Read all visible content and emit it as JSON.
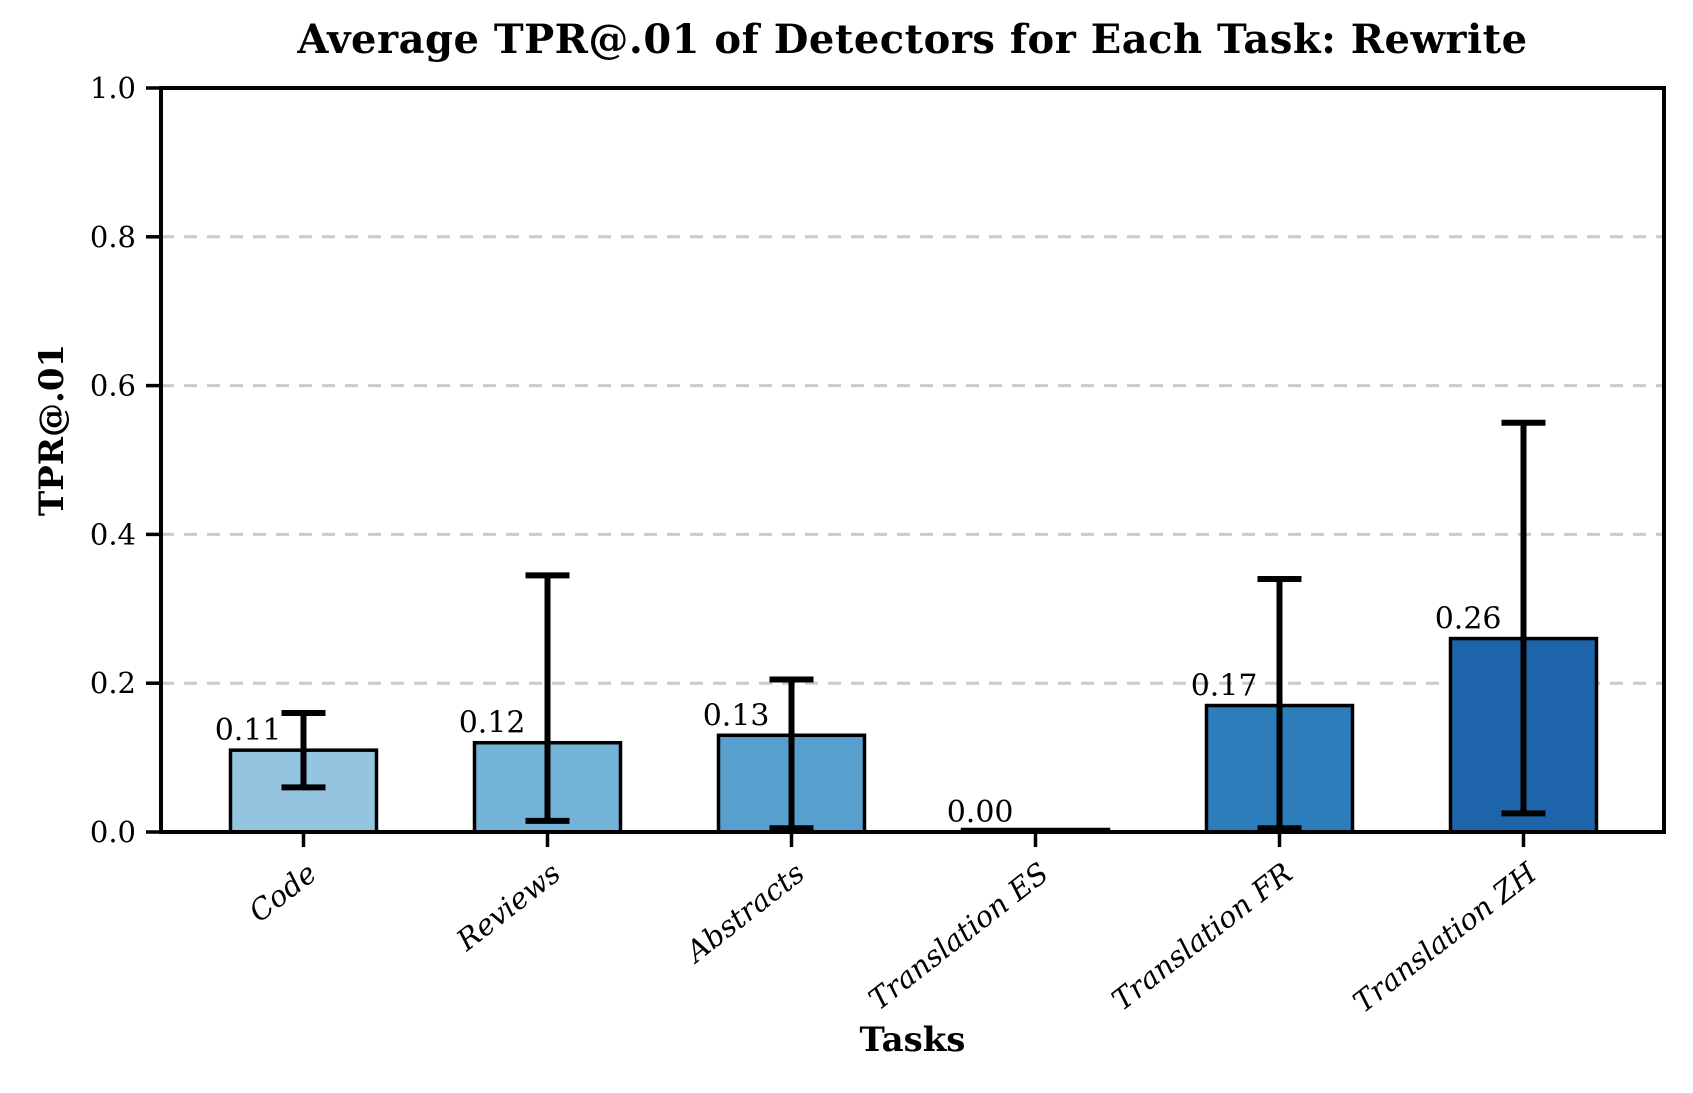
{
  "figure": {
    "background": "#ffffff"
  },
  "chart_data": {
    "type": "bar",
    "title": "Average TPR@.01 of Detectors for Each Task: Rewrite",
    "xlabel": "Tasks",
    "ylabel": "TPR@.01",
    "ylim": [
      0.0,
      1.0
    ],
    "yticks": [
      0.0,
      0.2,
      0.4,
      0.6,
      0.8,
      1.0
    ],
    "grid": {
      "horizontal_dashed_at": [
        0.2,
        0.4,
        0.6,
        0.8
      ],
      "color": "#cacaca"
    },
    "legend": "none",
    "categories": [
      "Code",
      "Reviews",
      "Abstracts",
      "Translation ES",
      "Translation FR",
      "Translation ZH"
    ],
    "values": [
      0.11,
      0.12,
      0.13,
      0.0,
      0.17,
      0.26
    ],
    "value_labels": [
      "0.11",
      "0.12",
      "0.13",
      "0.00",
      "0.17",
      "0.26"
    ],
    "error_low": [
      0.06,
      0.015,
      0.005,
      0.0,
      0.005,
      0.025
    ],
    "error_high": [
      0.16,
      0.345,
      0.205,
      0.0,
      0.34,
      0.55
    ],
    "bar_colors": [
      "#94c4df",
      "#73b3d8",
      "#57a0cd",
      "#3d8dc4",
      "#2d7dbb",
      "#1e64ab"
    ],
    "bar_edge_color": "#000000",
    "error_color": "#000000",
    "axis_color": "#000000",
    "text_color": "#000000"
  }
}
